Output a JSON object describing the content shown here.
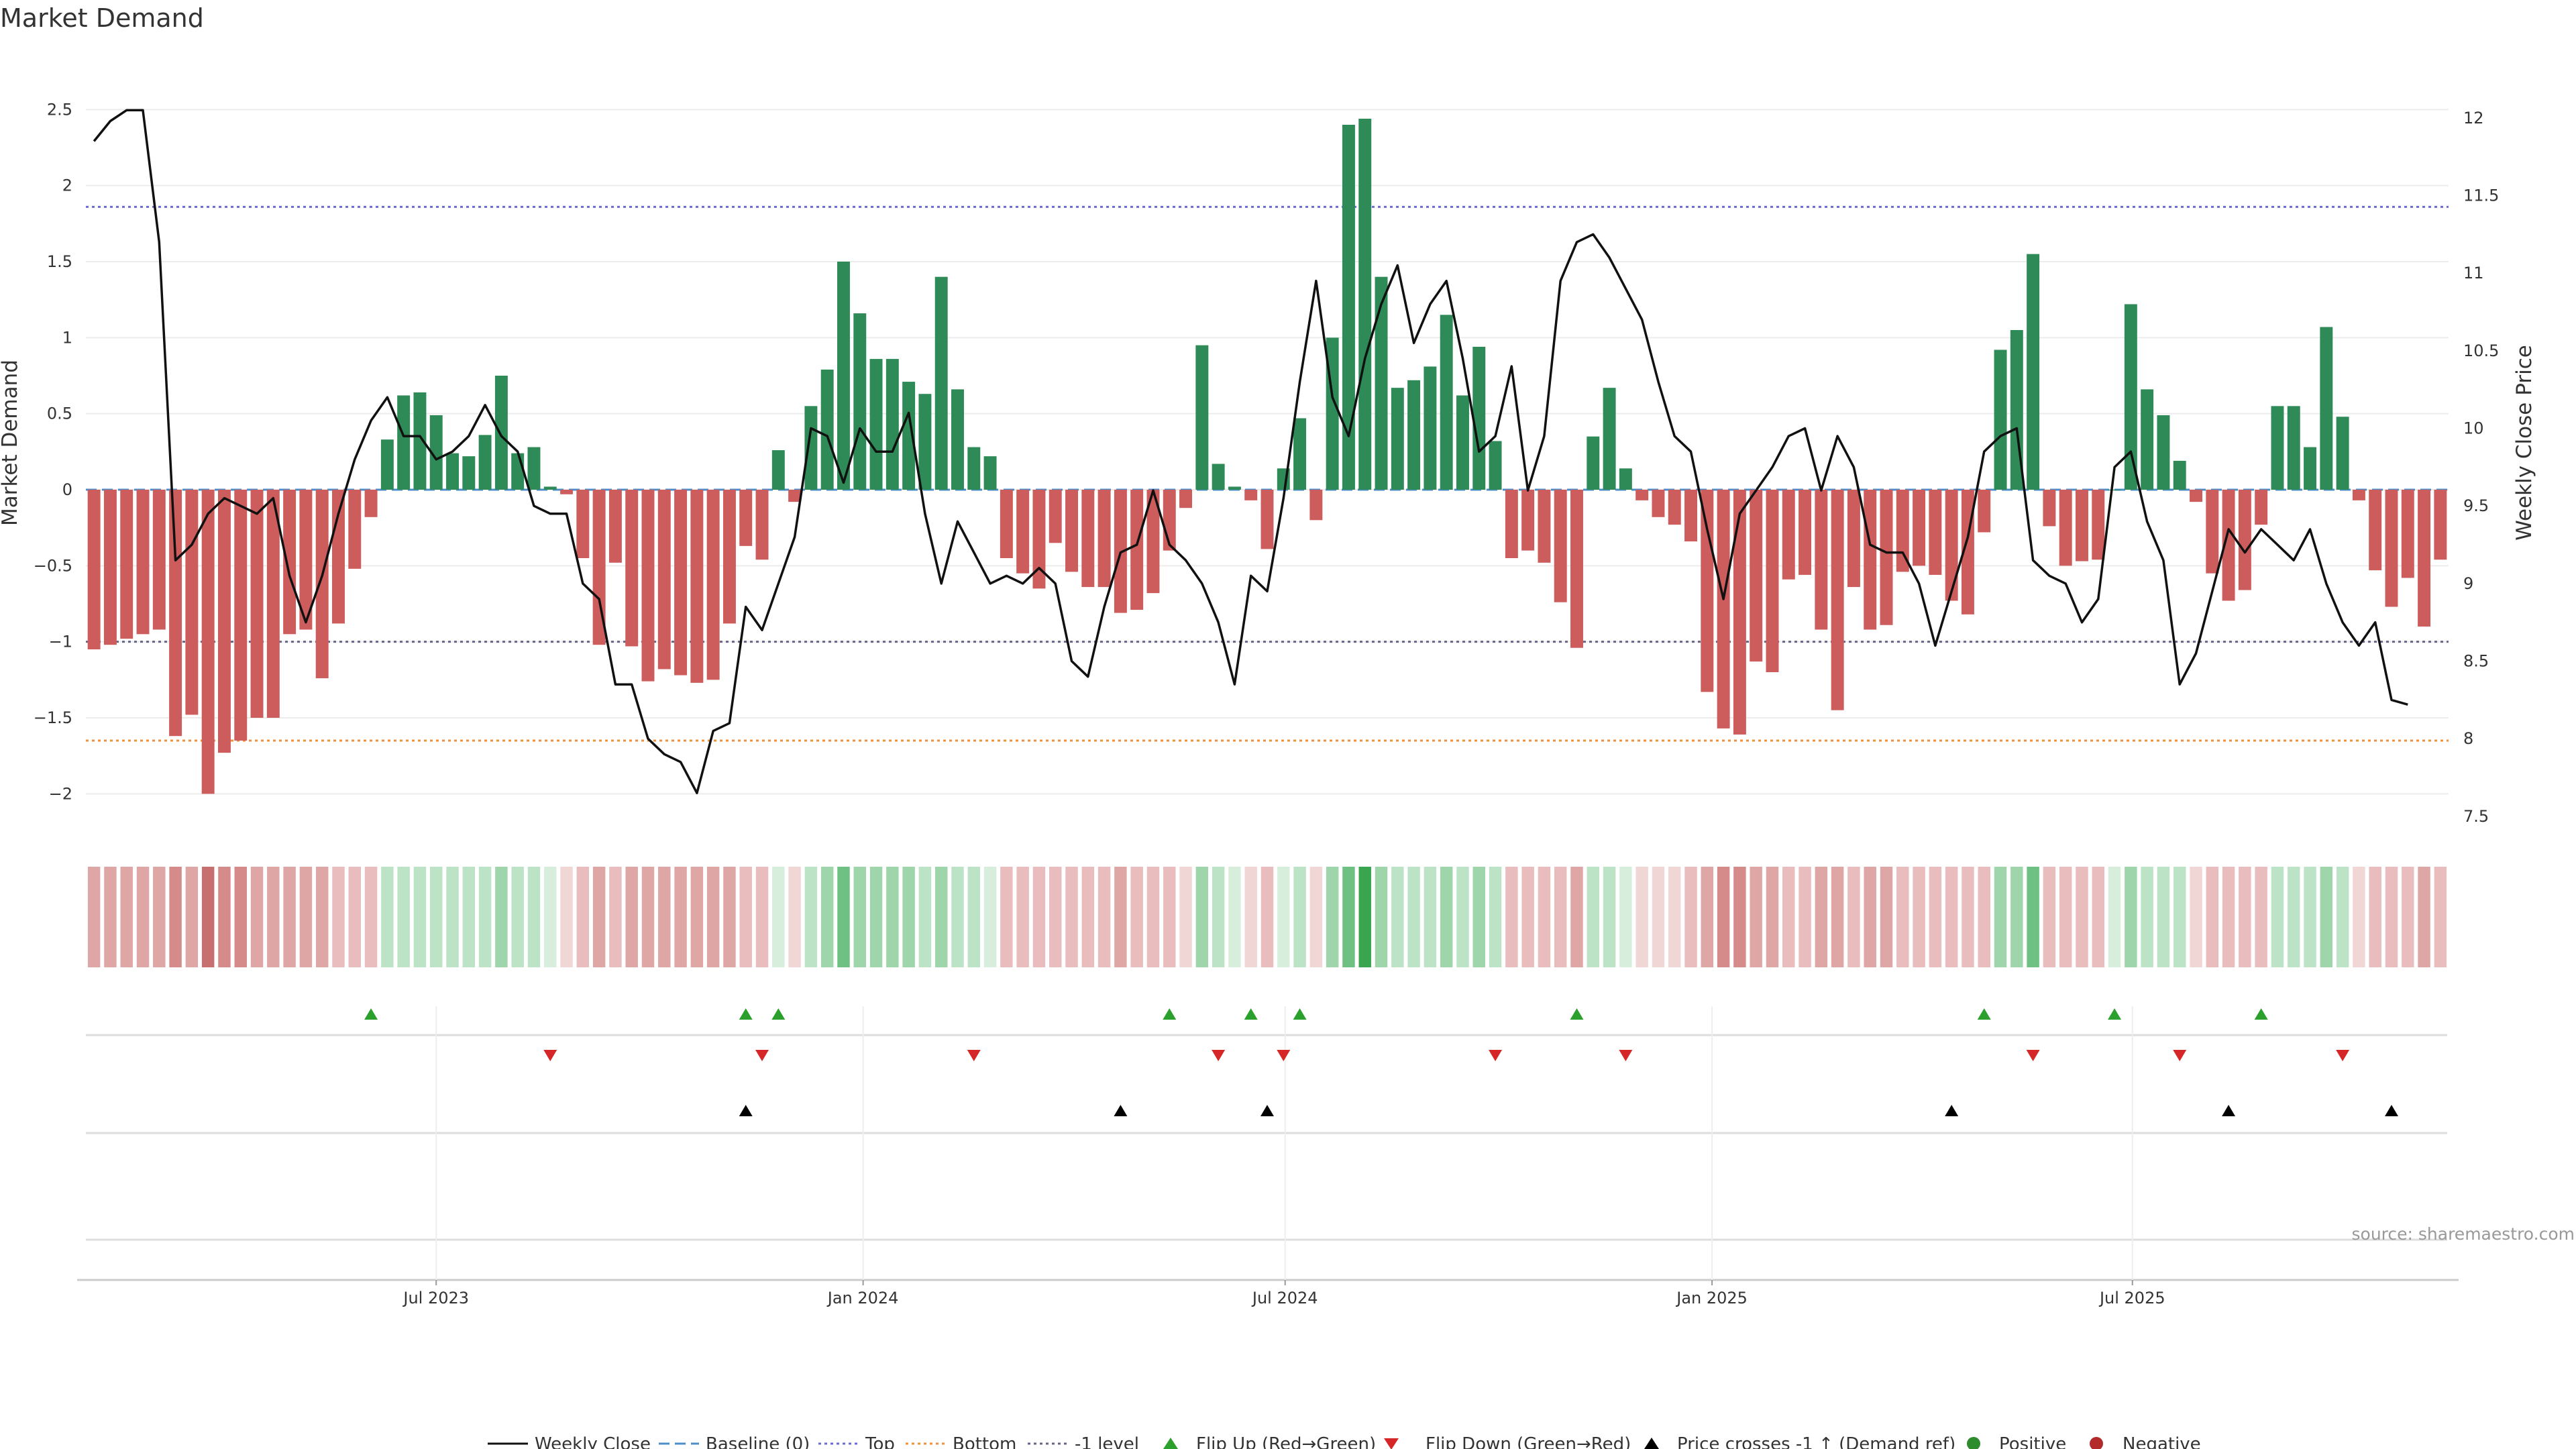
{
  "chart_data": {
    "type": "bar+line",
    "title": "Market Demand",
    "ylabel": "Market Demand",
    "y2label": "Weekly Close Price",
    "ylim": [
      -2.25,
      2.7
    ],
    "y2lim": [
      7.4,
      12.25
    ],
    "yticks": [
      2.5,
      2,
      1.5,
      1,
      0.5,
      0,
      -0.5,
      -1,
      -1.5,
      -2
    ],
    "ytick_labels": [
      "2.5",
      "2",
      "1.5",
      "1",
      "0.5",
      "0",
      "−0.5",
      "−1",
      "−1.5",
      "−2"
    ],
    "y2ticks": [
      12,
      11.5,
      11,
      10.5,
      10,
      9.5,
      9,
      8.5,
      8,
      7.5
    ],
    "y2tick_labels": [
      "12",
      "11.5",
      "11",
      "10.5",
      "10",
      "9.5",
      "9",
      "8.5",
      "8",
      "7.5"
    ],
    "xticks": [
      {
        "week": 21,
        "label": "Jul 2023"
      },
      {
        "week": 47.2,
        "label": "Jan 2024"
      },
      {
        "week": 73.1,
        "label": "Jul 2024"
      },
      {
        "week": 99.3,
        "label": "Jan 2025"
      },
      {
        "week": 125.1,
        "label": "Jul 2025"
      }
    ],
    "reference_lines": {
      "top": 1.86,
      "bottom": -1.65,
      "minus_one": -1.0,
      "baseline": 0
    },
    "demand": [
      -1.05,
      -1.02,
      -0.98,
      -0.95,
      -0.92,
      -1.62,
      -1.48,
      -2.0,
      -1.73,
      -1.65,
      -1.5,
      -1.5,
      -0.95,
      -0.92,
      -1.24,
      -0.88,
      -0.52,
      -0.18,
      0.33,
      0.62,
      0.64,
      0.49,
      0.24,
      0.22,
      0.36,
      0.75,
      0.24,
      0.28,
      0.02,
      -0.03,
      -0.45,
      -1.02,
      -0.48,
      -1.03,
      -1.26,
      -1.18,
      -1.22,
      -1.27,
      -1.25,
      -0.88,
      -0.37,
      -0.46,
      0.26,
      -0.08,
      0.55,
      0.79,
      1.5,
      1.16,
      0.86,
      0.86,
      0.71,
      0.63,
      1.4,
      0.66,
      0.28,
      0.22,
      -0.45,
      -0.55,
      -0.65,
      -0.35,
      -0.54,
      -0.64,
      -0.64,
      -0.81,
      -0.79,
      -0.68,
      -0.4,
      -0.12,
      0.95,
      0.17,
      0.02,
      -0.07,
      -0.39,
      0.14,
      0.47,
      -0.2,
      1.0,
      2.4,
      2.44,
      1.4,
      0.67,
      0.72,
      0.81,
      1.15,
      0.62,
      0.94,
      0.32,
      -0.45,
      -0.4,
      -0.48,
      -0.74,
      -1.04,
      0.35,
      0.67,
      0.14,
      -0.07,
      -0.18,
      -0.23,
      -0.34,
      -1.33,
      -1.57,
      -1.61,
      -1.13,
      -1.2,
      -0.59,
      -0.56,
      -0.92,
      -1.45,
      -0.64,
      -0.92,
      -0.89,
      -0.54,
      -0.5,
      -0.56,
      -0.73,
      -0.82,
      -0.28,
      0.92,
      1.05,
      1.55,
      -0.24,
      -0.5,
      -0.47,
      -0.46,
      0.0,
      1.22,
      0.66,
      0.49,
      0.19,
      -0.08,
      -0.55,
      -0.73,
      -0.66,
      -0.23,
      0.55,
      0.55,
      0.28,
      1.07,
      0.48,
      -0.07,
      -0.53,
      -0.77,
      -0.58,
      -0.9,
      -0.46
    ],
    "weekly_close": [
      11.85,
      11.98,
      12.05,
      12.05,
      11.2,
      9.15,
      9.25,
      9.45,
      9.55,
      9.5,
      9.45,
      9.55,
      9.05,
      8.75,
      9.05,
      9.45,
      9.8,
      10.05,
      10.2,
      9.95,
      9.95,
      9.8,
      9.85,
      9.95,
      10.15,
      9.95,
      9.85,
      9.5,
      9.45,
      9.45,
      9.0,
      8.9,
      8.35,
      8.35,
      8.0,
      7.9,
      7.85,
      7.65,
      8.05,
      8.1,
      8.85,
      8.7,
      9.0,
      9.3,
      10.0,
      9.95,
      9.65,
      10.0,
      9.85,
      9.85,
      10.1,
      9.45,
      9.0,
      9.4,
      9.2,
      9.0,
      9.05,
      9.0,
      9.1,
      9.0,
      8.5,
      8.4,
      8.85,
      9.2,
      9.25,
      9.6,
      9.25,
      9.15,
      9.0,
      8.75,
      8.35,
      9.05,
      8.95,
      9.55,
      10.3,
      10.95,
      10.2,
      9.95,
      10.45,
      10.8,
      11.05,
      10.55,
      10.8,
      10.95,
      10.45,
      9.85,
      9.95,
      10.4,
      9.6,
      9.95,
      10.95,
      11.2,
      11.25,
      11.1,
      10.9,
      10.7,
      10.3,
      9.95,
      9.85,
      9.35,
      8.9,
      9.45,
      9.6,
      9.75,
      9.95,
      10.0,
      9.6,
      9.95,
      9.75,
      9.25,
      9.2,
      9.2,
      9.0,
      8.6,
      8.95,
      9.3,
      9.85,
      9.95,
      10.0,
      9.15,
      9.05,
      9.0,
      8.75,
      8.9,
      9.75,
      9.85,
      9.4,
      9.15,
      8.35,
      8.55,
      8.95,
      9.35,
      9.2,
      9.35,
      9.25,
      9.15,
      9.35,
      9.0,
      8.75,
      8.6,
      8.75,
      8.25,
      8.22
    ],
    "heat_intensity": [
      2,
      2,
      2,
      2,
      2,
      3,
      2,
      4,
      3,
      3,
      2,
      2,
      2,
      2,
      2,
      1,
      1,
      1,
      1,
      1,
      1,
      1,
      1,
      1,
      1,
      2,
      1,
      1,
      0,
      0,
      1,
      2,
      1,
      2,
      2,
      2,
      2,
      2,
      2,
      2,
      1,
      1,
      0,
      0,
      1,
      2,
      3,
      2,
      2,
      2,
      2,
      1,
      2,
      1,
      1,
      0,
      1,
      1,
      1,
      1,
      1,
      1,
      1,
      2,
      1,
      1,
      1,
      0,
      2,
      1,
      0,
      0,
      1,
      0,
      1,
      0,
      2,
      3,
      4,
      2,
      1,
      1,
      1,
      2,
      1,
      2,
      1,
      1,
      1,
      1,
      1,
      2,
      1,
      1,
      0,
      0,
      0,
      0,
      1,
      2,
      3,
      3,
      2,
      2,
      1,
      1,
      2,
      2,
      1,
      2,
      2,
      1,
      1,
      1,
      1,
      1,
      1,
      2,
      2,
      3,
      1,
      1,
      1,
      1,
      0,
      2,
      1,
      1,
      1,
      0,
      1,
      1,
      1,
      1,
      1,
      1,
      1,
      2,
      1,
      0,
      1,
      1,
      1,
      2,
      1
    ],
    "flip_up_weeks": [
      17,
      40,
      42,
      66,
      71,
      74,
      91,
      116,
      124,
      133
    ],
    "flip_down_weeks": [
      28,
      41,
      54,
      69,
      73,
      86,
      94,
      119,
      128,
      138
    ],
    "price_cross_weeks": [
      40,
      63,
      72,
      114,
      131,
      141
    ],
    "legend": [
      "Weekly Close",
      "Baseline (0)",
      "Top",
      "Bottom",
      "-1 level",
      "Flip Up (Red→Green)",
      "Flip Down (Green→Red)",
      "Price crosses -1 ↑ (Demand ref)",
      "Positive",
      "Negative"
    ],
    "source": "source: sharemaestro.com"
  },
  "colors": {
    "positive": "#2e8b57",
    "negative": "#cd5c5c",
    "line": "#111111",
    "top": "#6b6bd6",
    "bottom": "#f0913c",
    "minus_one": "#666688",
    "baseline": "#4c8ec9",
    "flip_up": "#2ca02c",
    "flip_down": "#d62728",
    "cross": "#000000",
    "heat_pos": [
      "#d8eedd",
      "#bde3c6",
      "#9ed5ab",
      "#6fc083",
      "#3aa54f"
    ],
    "heat_neg": [
      "#f1d6d6",
      "#e9bdbd",
      "#dfa6a6",
      "#d68b8b",
      "#c86f6f"
    ]
  }
}
